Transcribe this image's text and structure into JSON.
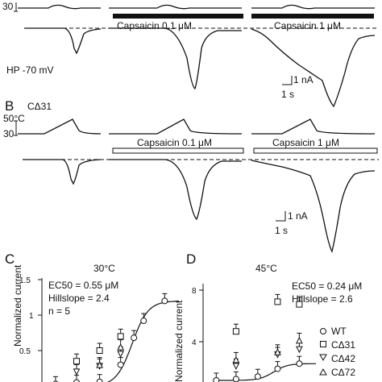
{
  "panel_a": {
    "temp_tick": "30",
    "hp_label": "HP -70 mV",
    "bar_middle_label": "Capsaicin 0.1 μM",
    "bar_right_label": "Capsaicin 1 μM",
    "scale_current": "1 nA",
    "scale_time": "1 s"
  },
  "panel_b": {
    "letter": "B",
    "construct": "CΔ31",
    "temp_label": "50°C",
    "temp_tick": "30",
    "bar_middle_label": "Capsaicin 0.1 μM",
    "bar_right_label": "Capsaicin 1 μM",
    "scale_current": "1 nA",
    "scale_time": "1 s"
  },
  "panel_c": {
    "letter": "C",
    "title": "30°C",
    "ylabel": "Normalized current",
    "yticks": [
      "1.5",
      "1",
      "0.5"
    ],
    "ec50_text": "EC50 = 0.55 μM",
    "hillslope_text": "Hillslope = 2.4",
    "n_text": "n = 5"
  },
  "panel_d": {
    "letter": "D",
    "title": "45°C",
    "ylabel": "Normalized current",
    "yticks": [
      "8",
      "4"
    ],
    "ec50_text": "EC50 = 0.24 μM",
    "hillslope_text": "Hillslope = 2.6",
    "legend": [
      {
        "symbol": "circle",
        "label": "WT"
      },
      {
        "symbol": "square",
        "label": "CΔ31"
      },
      {
        "symbol": "triangle-down",
        "label": "CΔ42"
      },
      {
        "symbol": "triangle-up",
        "label": "CΔ72"
      }
    ]
  },
  "chart_data": [
    {
      "type": "scatter",
      "panel": "C",
      "title": "30°C",
      "ylabel": "Normalized current",
      "ylim": [
        0,
        1.5
      ],
      "log_x": true,
      "fit": {
        "ec50": 0.55,
        "hillslope": 2.4,
        "max": 1.2
      },
      "series": [
        {
          "name": "WT",
          "marker": "circle",
          "points": [
            {
              "x": 0.01,
              "y": 0.03
            },
            {
              "x": 0.03,
              "y": 0.05
            },
            {
              "x": 0.1,
              "y": 0.06
            },
            {
              "x": 0.3,
              "y": 0.3
            },
            {
              "x": 0.6,
              "y": 0.68
            },
            {
              "x": 1,
              "y": 0.92
            },
            {
              "x": 3,
              "y": 1.2
            }
          ]
        },
        {
          "name": "CΔ31",
          "marker": "square",
          "points": [
            {
              "x": 0.03,
              "y": 0.35
            },
            {
              "x": 0.1,
              "y": 0.5
            },
            {
              "x": 0.3,
              "y": 0.7
            }
          ]
        },
        {
          "name": "CΔ42",
          "marker": "triangle-down",
          "points": [
            {
              "x": 0.03,
              "y": 0.2
            },
            {
              "x": 0.1,
              "y": 0.28
            },
            {
              "x": 0.3,
              "y": 0.45
            }
          ]
        },
        {
          "name": "CΔ72",
          "marker": "triangle-up",
          "points": [
            {
              "x": 0.1,
              "y": 0.3
            },
            {
              "x": 0.3,
              "y": 0.55
            }
          ]
        }
      ]
    },
    {
      "type": "scatter",
      "panel": "D",
      "title": "45°C",
      "ylabel": "Normalized current",
      "ylim": [
        0,
        8
      ],
      "log_x": true,
      "fit": {
        "ec50": 0.24,
        "hillslope": 2.6,
        "base": 1,
        "max": 2.3
      },
      "series": [
        {
          "name": "WT",
          "marker": "circle",
          "points": [
            {
              "x": 0.01,
              "y": 1.0
            },
            {
              "x": 0.03,
              "y": 1.1
            },
            {
              "x": 0.1,
              "y": 1.3
            },
            {
              "x": 0.3,
              "y": 1.9
            },
            {
              "x": 1,
              "y": 2.3
            }
          ]
        },
        {
          "name": "CΔ31",
          "marker": "square",
          "points": [
            {
              "x": 0.03,
              "y": 4.8
            },
            {
              "x": 0.3,
              "y": 7.1
            },
            {
              "x": 1,
              "y": 6.9
            }
          ]
        },
        {
          "name": "CΔ42",
          "marker": "triangle-down",
          "points": [
            {
              "x": 0.03,
              "y": 2.1
            },
            {
              "x": 0.3,
              "y": 3.0
            },
            {
              "x": 1,
              "y": 3.4
            }
          ]
        },
        {
          "name": "CΔ72",
          "marker": "triangle-up",
          "points": [
            {
              "x": 0.03,
              "y": 2.6
            },
            {
              "x": 0.3,
              "y": 3.2
            },
            {
              "x": 1,
              "y": 4.1
            }
          ]
        }
      ]
    }
  ]
}
